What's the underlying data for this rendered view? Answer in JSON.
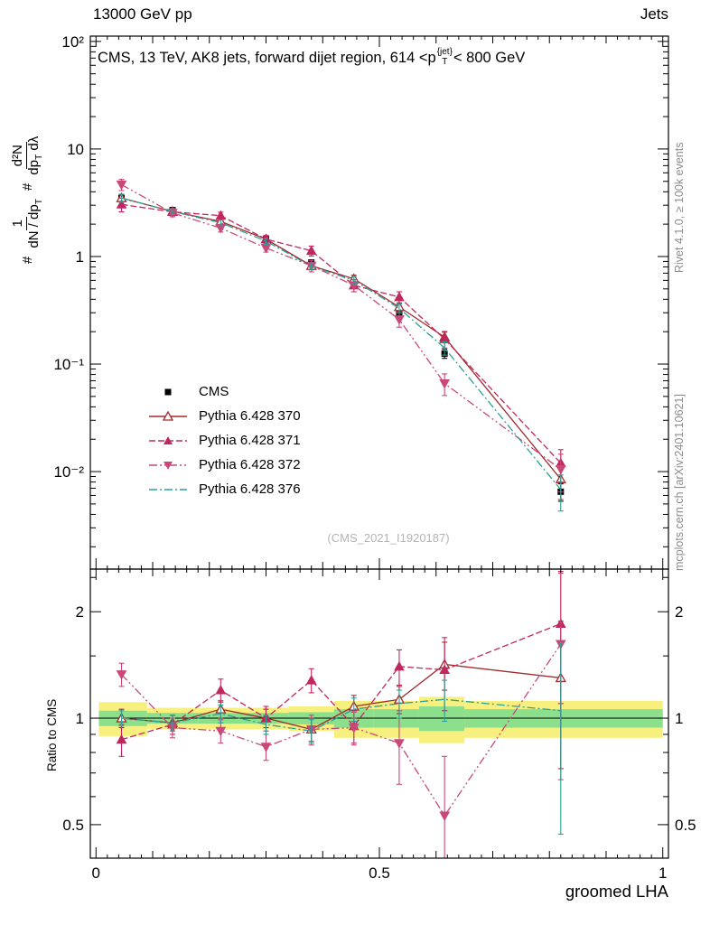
{
  "header": {
    "left": "13000 GeV pp",
    "right": "Jets"
  },
  "title": {
    "pre": "CMS, 13 TeV, AK8 jets, forward dijet region, 614 <p",
    "sup": "{jet}",
    "sub": "T",
    "post": "< 800 GeV"
  },
  "ylabel": {
    "hash": "#",
    "f1num": "1",
    "f1den": "dN / dp",
    "f1den_sub": "T",
    "f2num": "d²N",
    "f2den": "dp",
    "f2den_sub": "T",
    "f2den_tail": " dλ"
  },
  "side_texts": {
    "rivet": "Rivet 4.1.0, ≥ 100k events",
    "mcplots": "mcplots.cern.ch [arXiv:2401.10621]"
  },
  "watermark": "(CMS_2021_I1920187)",
  "ratio_ylabel": "Ratio to CMS",
  "xlabel": "groomed LHA",
  "chart_data": {
    "type": "line",
    "title": "CMS, 13 TeV, AK8 jets, forward dijet region, 614 <pT{jet}< 800 GeV",
    "xlabel": "groomed LHA",
    "ylabel": "# 1/(dN/dpT) # d²N/(dpT dλ)",
    "ratio_label": "Ratio to CMS",
    "x": [
      0.045,
      0.135,
      0.22,
      0.3,
      0.38,
      0.455,
      0.535,
      0.615,
      0.82
    ],
    "main_ylim_log": [
      0.00124,
      112
    ],
    "ratio_ylim_log": [
      0.402,
      2.64
    ],
    "xlim": [
      -0.01,
      1.01
    ],
    "series": [
      {
        "name": "CMS",
        "color": "#000000",
        "marker": "square",
        "line": "none",
        "dash": "",
        "values": [
          3.5,
          2.7,
          2.0,
          1.45,
          0.88,
          0.57,
          0.3,
          0.125,
          0.0065
        ],
        "yerr": [
          0.25,
          0.15,
          0.1,
          0.08,
          0.05,
          0.035,
          0.02,
          0.012,
          0.0012
        ]
      },
      {
        "name": "Pythia 6.428 370",
        "color": "#a02c2c",
        "marker": "triangle-open",
        "line": "solid",
        "dash": "",
        "values": [
          3.5,
          2.62,
          2.12,
          1.45,
          0.82,
          0.62,
          0.34,
          0.178,
          0.0085
        ],
        "yerr": [
          0.25,
          0.15,
          0.12,
          0.09,
          0.06,
          0.05,
          0.03,
          0.02,
          0.003
        ],
        "ratio": [
          1.0,
          0.97,
          1.06,
          1.0,
          0.93,
          1.08,
          1.13,
          1.42,
          1.3
        ],
        "ratio_err": [
          0.06,
          0.05,
          0.06,
          0.06,
          0.07,
          0.08,
          0.1,
          0.22,
          0.58
        ]
      },
      {
        "name": "Pythia 6.428 371",
        "color": "#c2265e",
        "marker": "triangle-up",
        "line": "dashed",
        "dash": "7,3",
        "values": [
          3.05,
          2.6,
          2.4,
          1.45,
          1.13,
          0.54,
          0.42,
          0.171,
          0.012
        ],
        "yerr": [
          0.45,
          0.2,
          0.18,
          0.12,
          0.12,
          0.07,
          0.05,
          0.03,
          0.004
        ],
        "ratio": [
          0.87,
          0.96,
          1.2,
          1.0,
          1.28,
          0.95,
          1.4,
          1.37,
          1.85
        ],
        "ratio_err": [
          0.09,
          0.06,
          0.09,
          0.08,
          0.1,
          0.1,
          0.16,
          0.32,
          0.75
        ]
      },
      {
        "name": "Pythia 6.428 372",
        "color": "#c94878",
        "marker": "triangle-down",
        "line": "dashdotdot",
        "dash": "9,3,2,3,2,3",
        "values": [
          4.66,
          2.54,
          1.84,
          1.2,
          0.82,
          0.54,
          0.26,
          0.066,
          0.0105
        ],
        "yerr": [
          0.55,
          0.2,
          0.15,
          0.1,
          0.1,
          0.07,
          0.04,
          0.015,
          0.004
        ],
        "ratio": [
          1.33,
          0.94,
          0.92,
          0.83,
          0.93,
          0.94,
          0.85,
          0.53,
          1.62
        ],
        "ratio_err": [
          0.1,
          0.06,
          0.07,
          0.07,
          0.09,
          0.1,
          0.2,
          0.25,
          0.95
        ]
      },
      {
        "name": "Pythia 6.428 376",
        "color": "#2aa198",
        "marker": "none",
        "line": "dashdot",
        "dash": "9,3,2,3",
        "values": [
          3.5,
          2.62,
          2.06,
          1.39,
          0.81,
          0.6,
          0.33,
          0.141,
          0.0068
        ],
        "yerr": [
          0.3,
          0.15,
          0.12,
          0.09,
          0.06,
          0.05,
          0.03,
          0.02,
          0.0025
        ],
        "ratio": [
          1.0,
          0.97,
          1.03,
          0.96,
          0.92,
          1.06,
          1.1,
          1.13,
          1.05
        ],
        "ratio_err": [
          0.05,
          0.05,
          0.06,
          0.06,
          0.07,
          0.08,
          0.1,
          0.15,
          0.58
        ]
      }
    ],
    "bands": {
      "edges": [
        0.005,
        0.09,
        0.18,
        0.26,
        0.34,
        0.42,
        0.49,
        0.57,
        0.65,
        1.0
      ],
      "yellow": [
        0.11,
        0.07,
        0.07,
        0.07,
        0.08,
        0.12,
        0.12,
        0.15,
        0.12
      ],
      "green": [
        0.05,
        0.035,
        0.035,
        0.035,
        0.04,
        0.06,
        0.06,
        0.08,
        0.06
      ],
      "yellow_color": "#f7f07e",
      "green_color": "#8ce08c"
    },
    "axes": {
      "xticks": [
        [
          0,
          "0"
        ],
        [
          0.5,
          "0.5"
        ],
        [
          1,
          "1"
        ]
      ],
      "yticks_main": [
        [
          100,
          "10²"
        ],
        [
          10,
          "10"
        ],
        [
          1,
          "1"
        ],
        [
          0.1,
          "10⁻¹"
        ],
        [
          0.01,
          "10⁻²"
        ]
      ],
      "yticks_ratio": [
        [
          2,
          "2"
        ],
        [
          1,
          "1"
        ],
        [
          0.5,
          "0.5"
        ]
      ]
    }
  }
}
